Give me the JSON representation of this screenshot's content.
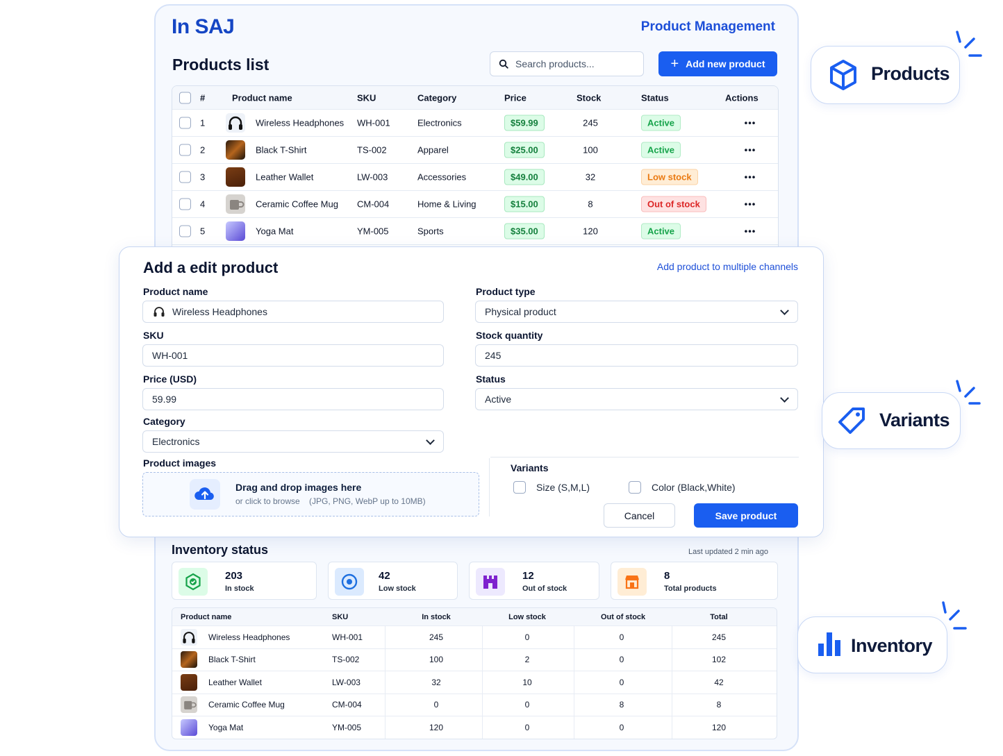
{
  "brand": "In SAJ",
  "app_title": "Product Management",
  "products_list": {
    "title": "Products list",
    "search_placeholder": "Search products...",
    "add_button": "Add new product",
    "columns": [
      "#",
      "Product name",
      "SKU",
      "Category",
      "Price",
      "Stock",
      "Status",
      "Actions"
    ],
    "rows": [
      {
        "num": "1",
        "name": "Wireless Headphones",
        "sku": "WH-001",
        "category": "Electronics",
        "price": "$59.99",
        "stock": "245",
        "status": "Active",
        "status_color": "green",
        "actions": "•••"
      },
      {
        "num": "2",
        "name": "Black T-Shirt",
        "sku": "TS-002",
        "category": "Apparel",
        "price": "$25.00",
        "stock": "100",
        "status": "Active",
        "status_color": "green",
        "actions": "•••"
      },
      {
        "num": "3",
        "name": "Leather Wallet",
        "sku": "LW-003",
        "category": "Accessories",
        "price": "$49.00",
        "stock": "32",
        "status": "Low stock",
        "status_color": "orange",
        "actions": "•••"
      },
      {
        "num": "4",
        "name": "Ceramic Coffee Mug",
        "sku": "CM-004",
        "category": "Home & Living",
        "price": "$15.00",
        "stock": "8",
        "status": "Out of stock",
        "status_color": "red",
        "actions": "•••"
      },
      {
        "num": "5",
        "name": "Yoga Mat",
        "sku": "YM-005",
        "category": "Sports",
        "price": "$35.00",
        "stock": "120",
        "status": "Active",
        "status_color": "green",
        "actions": "•••"
      }
    ]
  },
  "edit_form": {
    "title": "Add a edit product",
    "multi_channel_link": "Add product to multiple channels",
    "product_name_label": "Product name",
    "product_name_value": "Wireless Headphones",
    "sku_label": "SKU",
    "sku_value": "WH-001",
    "price_label": "Price (USD)",
    "price_value": "59.99",
    "category_label": "Category",
    "category_value": "Electronics",
    "product_type_label": "Product type",
    "product_type_value": "Physical product",
    "stock_label": "Stock quantity",
    "stock_value": "245",
    "status_label": "Status",
    "status_value": "Active",
    "images_label": "Product images",
    "upload_main": "Drag and drop images here",
    "upload_sub": "or click to browse    (JPG, PNG, WebP up to 10MB)",
    "variants_label": "Variants",
    "variant_size": "Size (S,M,L)",
    "variant_color": "Color (Black,White)",
    "cancel": "Cancel",
    "save": "Save product"
  },
  "inventory": {
    "title": "Inventory status",
    "updated": "Last updated 2 min ago",
    "stats": [
      {
        "value": "203",
        "label": "In stock",
        "color": "#16a34a"
      },
      {
        "value": "42",
        "label": "Low stock",
        "color": "#1d6fe0"
      },
      {
        "value": "12",
        "label": "Out of stock",
        "color": "#7e22ce"
      },
      {
        "value": "8",
        "label": "Total products",
        "color": "#f97316"
      }
    ],
    "columns": [
      "Product name",
      "SKU",
      "In stock",
      "Low stock",
      "Out of stock",
      "Total"
    ],
    "rows": [
      {
        "name": "Wireless Headphones",
        "sku": "WH-001",
        "in": "245",
        "low": "0",
        "out": "0",
        "total": "245"
      },
      {
        "name": "Black T-Shirt",
        "sku": "TS-002",
        "in": "100",
        "low": "2",
        "out": "0",
        "total": "102"
      },
      {
        "name": "Leather Wallet",
        "sku": "LW-003",
        "in": "32",
        "low": "10",
        "out": "0",
        "total": "42"
      },
      {
        "name": "Ceramic Coffee Mug",
        "sku": "CM-004",
        "in": "0",
        "low": "0",
        "out": "8",
        "total": "8"
      },
      {
        "name": "Yoga Mat",
        "sku": "YM-005",
        "in": "120",
        "low": "0",
        "out": "0",
        "total": "120"
      }
    ]
  },
  "badges": {
    "products": "Products",
    "variants": "Variants",
    "inventory": "Inventory"
  },
  "colors": {
    "primary": "#1a5ef0",
    "brand": "#1546c4",
    "active": "#16a34a",
    "low_stock": "#ea7a12",
    "out_of_stock": "#dc2626"
  },
  "icons": [
    "search-icon",
    "plus-icon",
    "headphones-icon",
    "cloud-upload-icon",
    "chevron-down-icon",
    "cube-icon",
    "tag-icon",
    "bar-chart-icon",
    "ellipsis-icon",
    "box-check-icon",
    "target-icon",
    "warehouse-icon",
    "store-icon"
  ]
}
